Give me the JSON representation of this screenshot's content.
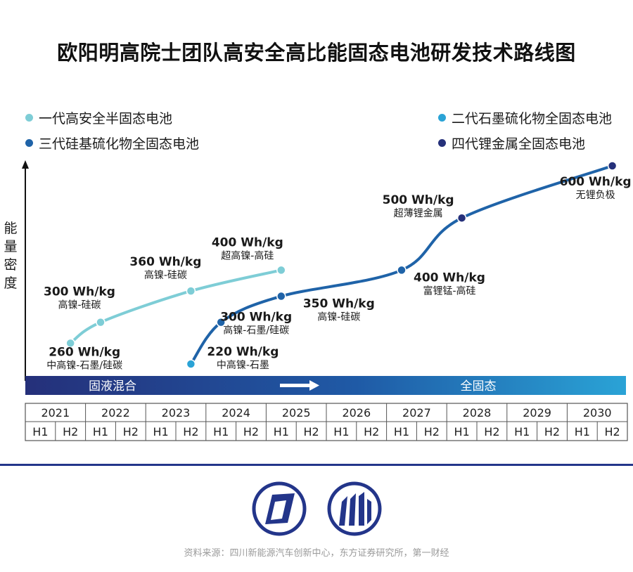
{
  "title": "欧阳明高院士团队高安全高比能固态电池研发技术路线图",
  "legend": [
    {
      "label": "一代高安全半固态电池",
      "color": "#7ecdd6"
    },
    {
      "label": "二代石墨硫化物全固态电池",
      "color": "#2aa3d6"
    },
    {
      "label": "三代硅基硫化物全固态电池",
      "color": "#1f63a8"
    },
    {
      "label": "四代锂金属全固态电池",
      "color": "#25307a"
    }
  ],
  "ylabel": "能量密度",
  "phase_bar": {
    "left": "固液混合",
    "right": "全固态"
  },
  "source": "资料来源：四川新能源汽车创新中心，东方证券研究所，第一财经",
  "chart_data": {
    "type": "line",
    "years": [
      "2021",
      "2022",
      "2023",
      "2024",
      "2025",
      "2026",
      "2027",
      "2028",
      "2029",
      "2030"
    ],
    "halves": [
      "H1",
      "H2"
    ],
    "ylabel": "能量密度",
    "series": [
      {
        "name": "一代高安全半固态电池",
        "color": "#7ecdd6",
        "points": [
          {
            "t": "2021H2",
            "value": "260 Wh/kg",
            "note": "中高镍-石墨/硅碳"
          },
          {
            "t": "2022H1",
            "value": "300 Wh/kg",
            "note": "高镍-硅碳"
          },
          {
            "t": "2023H2",
            "value": "360 Wh/kg",
            "note": "高镍-硅碳"
          },
          {
            "t": "2025H1",
            "value": "400 Wh/kg",
            "note": "超高镍-高硅"
          }
        ]
      },
      {
        "name": "三代硅基硫化物全固态电池",
        "color": "#1f63a8",
        "points": [
          {
            "t": "2023H2",
            "value": "220 Wh/kg",
            "note": "中高镍-石墨"
          },
          {
            "t": "2024H1",
            "value": "300 Wh/kg",
            "note": "高镍-石墨/硅碳"
          },
          {
            "t": "2025H1",
            "value": "350 Wh/kg",
            "note": "高镍-硅碳"
          },
          {
            "t": "2027H1",
            "value": "400 Wh/kg",
            "note": "富锂锰-高硅"
          },
          {
            "t": "2028H1",
            "value": "500 Wh/kg",
            "note": "超薄锂金属"
          },
          {
            "t": "2030H2",
            "value": "600 Wh/kg",
            "note": "无锂负极"
          }
        ]
      }
    ]
  }
}
